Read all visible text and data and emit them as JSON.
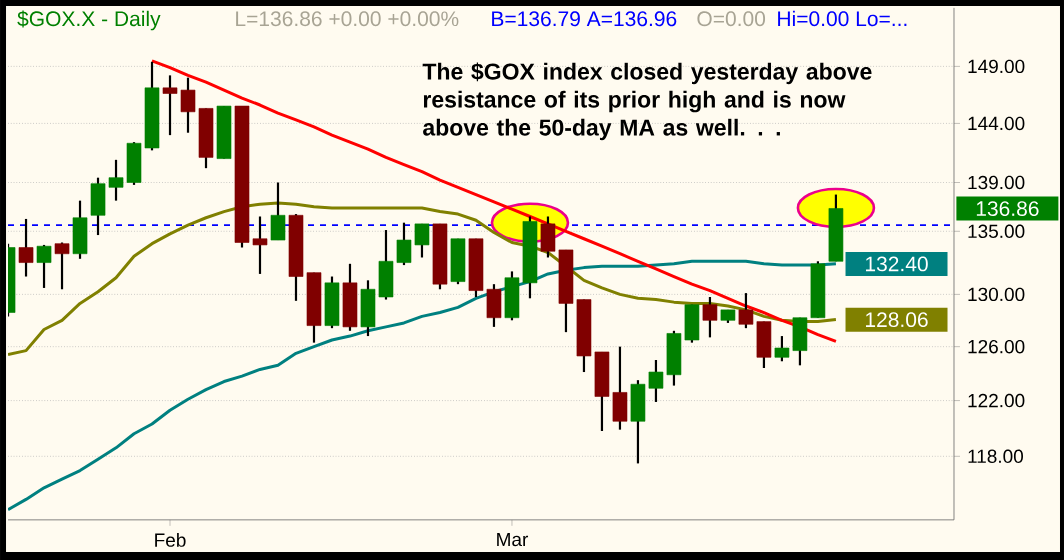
{
  "chart_data": {
    "type": "candlestick",
    "title": "$GOX.X - Daily",
    "annotations": [
      "L=136.86 +0.00 +0.00%",
      "B=136.79 A=136.96",
      "O=0.00",
      "Hi=0.00 Lo=...",
      "The $GOX index closed yesterday above resistance of its prior high and is now above the 50-day MA as well. . ."
    ],
    "categories": [
      null,
      null,
      null,
      null,
      null,
      null,
      null,
      null,
      null,
      "Feb",
      null,
      null,
      null,
      null,
      null,
      null,
      null,
      null,
      null,
      null,
      null,
      null,
      null,
      null,
      null,
      null,
      null,
      null,
      "Mar",
      null,
      null,
      null,
      null,
      null,
      null,
      null,
      null,
      null,
      null,
      null,
      null,
      null,
      null,
      null,
      null,
      null,
      null
    ],
    "ylim": [
      113.6,
      154.3
    ],
    "log": true,
    "grid": "y",
    "yticks": [
      {
        "value": 149,
        "label": "149.00"
      },
      {
        "value": 144,
        "label": "144.00"
      },
      {
        "value": 139,
        "label": "139.00"
      },
      {
        "value": 135,
        "label": "135.00"
      },
      {
        "value": 130,
        "label": "130.00"
      },
      {
        "value": 126,
        "label": "126.00"
      },
      {
        "value": 122,
        "label": "122.00"
      },
      {
        "value": 118,
        "label": "118.00"
      }
    ],
    "ref_lines": [
      {
        "axis": "y",
        "value": 135.5,
        "color": "#0000ff",
        "line_style": "dashed"
      }
    ],
    "series": [
      {
        "type": "scatter",
        "marker": "circle",
        "color": "#ffff00",
        "values": [
          null,
          null,
          null,
          null,
          null,
          null,
          null,
          null,
          null,
          null,
          null,
          null,
          null,
          null,
          null,
          null,
          null,
          null,
          null,
          null,
          null,
          null,
          null,
          null,
          null,
          null,
          null,
          null,
          null,
          135.7,
          null,
          null,
          null,
          null,
          null,
          null,
          null,
          null,
          null,
          null,
          null,
          null,
          null,
          null,
          null,
          null,
          136.9
        ]
      },
      {
        "type": "line",
        "color": "#808000",
        "values": [
          125.4,
          125.7,
          127.3,
          128.0,
          129.3,
          130.2,
          131.3,
          133.0,
          134.0,
          134.8,
          135.5,
          136.1,
          136.6,
          137.0,
          137.2,
          137.3,
          137.2,
          137.0,
          136.9,
          136.9,
          136.9,
          136.9,
          136.9,
          136.9,
          136.6,
          136.4,
          135.9,
          134.9,
          134.1,
          133.8,
          133.3,
          132.2,
          131.1,
          130.5,
          130.0,
          129.7,
          129.6,
          129.4,
          129.3,
          129.3,
          129.1,
          128.8,
          128.3,
          128.0,
          127.9,
          127.9,
          128.06
        ],
        "value_labels": [
          null,
          null,
          null,
          null,
          null,
          null,
          null,
          null,
          null,
          null,
          null,
          null,
          null,
          null,
          null,
          null,
          null,
          null,
          null,
          null,
          null,
          null,
          null,
          null,
          null,
          null,
          null,
          null,
          null,
          null,
          null,
          null,
          null,
          null,
          null,
          null,
          null,
          null,
          null,
          null,
          null,
          null,
          null,
          null,
          null,
          null,
          "128.06"
        ]
      },
      {
        "type": "line",
        "color": "#008080",
        "values": [
          114.3,
          115.0,
          115.8,
          116.4,
          117.0,
          117.8,
          118.6,
          119.6,
          120.3,
          121.3,
          122.1,
          122.8,
          123.4,
          123.8,
          124.3,
          124.6,
          125.5,
          126.0,
          126.5,
          126.8,
          127.2,
          127.5,
          127.8,
          128.3,
          128.6,
          129.0,
          129.7,
          130.2,
          130.6,
          131.0,
          131.6,
          131.9,
          132.1,
          132.2,
          132.2,
          132.2,
          132.3,
          132.4,
          132.6,
          132.6,
          132.6,
          132.6,
          132.4,
          132.3,
          132.3,
          132.3,
          132.4
        ],
        "value_labels": [
          null,
          null,
          null,
          null,
          null,
          null,
          null,
          null,
          null,
          null,
          null,
          null,
          null,
          null,
          null,
          null,
          null,
          null,
          null,
          null,
          null,
          null,
          null,
          null,
          null,
          null,
          null,
          null,
          null,
          null,
          null,
          null,
          null,
          null,
          null,
          null,
          null,
          null,
          null,
          null,
          null,
          null,
          null,
          null,
          null,
          null,
          "132.40"
        ]
      },
      {
        "type": "line",
        "color": "#ff0000",
        "values": [
          null,
          null,
          null,
          null,
          null,
          null,
          null,
          null,
          149.5,
          148.9,
          148.2,
          147.6,
          146.9,
          146.2,
          145.6,
          144.9,
          144.3,
          143.7,
          143.0,
          142.4,
          141.8,
          141.1,
          140.5,
          139.9,
          139.2,
          138.6,
          138.0,
          137.4,
          136.8,
          136.2,
          135.6,
          135.0,
          134.4,
          133.8,
          133.2,
          132.6,
          132.0,
          131.4,
          130.8,
          130.3,
          129.7,
          129.1,
          128.6,
          128.0,
          127.5,
          126.9,
          126.4
        ]
      },
      {
        "ohlc": [
          [
            128.6,
            134.0,
            128.3,
            133.7
          ],
          [
            133.7,
            136.0,
            131.4,
            132.5
          ],
          [
            132.5,
            133.9,
            130.5,
            133.8
          ],
          [
            134.0,
            134.1,
            130.4,
            133.2
          ],
          [
            133.2,
            137.5,
            132.8,
            136.1
          ],
          [
            136.3,
            139.4,
            134.7,
            138.9
          ],
          [
            138.6,
            140.9,
            137.5,
            139.4
          ],
          [
            139.0,
            142.4,
            138.8,
            142.3
          ],
          [
            141.9,
            149.4,
            141.7,
            147.1
          ],
          [
            147.1,
            148.2,
            143.0,
            146.6
          ],
          [
            146.9,
            148.0,
            143.2,
            145.0
          ],
          [
            145.3,
            145.3,
            140.2,
            141.1
          ],
          [
            141.0,
            145.5,
            141.0,
            145.5
          ],
          [
            145.5,
            145.5,
            133.7,
            134.1
          ],
          [
            134.4,
            136.2,
            131.6,
            133.9
          ],
          [
            134.3,
            139.0,
            134.3,
            136.3
          ],
          [
            136.3,
            136.4,
            129.5,
            131.4
          ],
          [
            131.7,
            131.7,
            126.3,
            127.6
          ],
          [
            127.6,
            131.4,
            127.4,
            130.9
          ],
          [
            130.9,
            132.4,
            127.2,
            127.5
          ],
          [
            127.5,
            131.1,
            126.8,
            130.4
          ],
          [
            129.8,
            135.1,
            129.6,
            132.6
          ],
          [
            132.5,
            135.7,
            132.3,
            134.3
          ],
          [
            133.9,
            135.6,
            132.9,
            135.6
          ],
          [
            135.6,
            135.6,
            130.4,
            130.8
          ],
          [
            131.0,
            134.4,
            130.8,
            134.4
          ],
          [
            134.4,
            134.4,
            129.8,
            130.3
          ],
          [
            130.4,
            130.8,
            127.5,
            128.2
          ],
          [
            128.2,
            131.8,
            128.0,
            131.3
          ],
          [
            130.9,
            136.2,
            129.7,
            135.8
          ],
          [
            135.6,
            136.2,
            132.9,
            133.4
          ],
          [
            133.5,
            133.5,
            127.1,
            129.3
          ],
          [
            129.6,
            129.6,
            124.1,
            125.3
          ],
          [
            125.6,
            125.6,
            119.8,
            122.3
          ],
          [
            122.6,
            126.0,
            119.9,
            120.5
          ],
          [
            120.5,
            123.5,
            117.5,
            123.2
          ],
          [
            122.9,
            125.0,
            121.9,
            124.1
          ],
          [
            123.9,
            127.2,
            123.1,
            127.0
          ],
          [
            126.5,
            129.2,
            126.3,
            129.2
          ],
          [
            129.2,
            129.8,
            126.7,
            128.0
          ],
          [
            128.0,
            128.8,
            127.8,
            128.8
          ],
          [
            128.8,
            130.1,
            127.4,
            127.7
          ],
          [
            127.9,
            127.9,
            124.4,
            125.2
          ],
          [
            125.2,
            126.8,
            124.9,
            125.9
          ],
          [
            125.7,
            128.2,
            124.6,
            128.2
          ],
          [
            128.2,
            132.6,
            128.2,
            132.4
          ],
          [
            132.6,
            138.0,
            132.6,
            136.86
          ]
        ],
        "colors": [
          "#008000",
          "#800000",
          "#008000",
          "#800000",
          "#008000",
          "#008000",
          "#008000",
          "#008000",
          "#008000",
          "#800000",
          "#800000",
          "#800000",
          "#008000",
          "#800000",
          "#800000",
          "#008000",
          "#800000",
          "#800000",
          "#008000",
          "#800000",
          "#008000",
          "#008000",
          "#008000",
          "#008000",
          "#800000",
          "#008000",
          "#800000",
          "#800000",
          "#008000",
          "#008000",
          "#800000",
          "#800000",
          "#800000",
          "#800000",
          "#800000",
          "#008000",
          "#008000",
          "#008000",
          "#008000",
          "#800000",
          "#008000",
          "#800000",
          "#800000",
          "#008000",
          "#008000",
          "#008000",
          "#008000"
        ],
        "value_labels": [
          null,
          null,
          null,
          null,
          null,
          null,
          null,
          null,
          null,
          null,
          null,
          null,
          null,
          null,
          null,
          null,
          null,
          null,
          null,
          null,
          null,
          null,
          null,
          null,
          null,
          null,
          null,
          null,
          null,
          null,
          null,
          null,
          null,
          null,
          null,
          null,
          null,
          null,
          null,
          null,
          null,
          null,
          null,
          null,
          null,
          null,
          "136.86"
        ]
      }
    ]
  }
}
